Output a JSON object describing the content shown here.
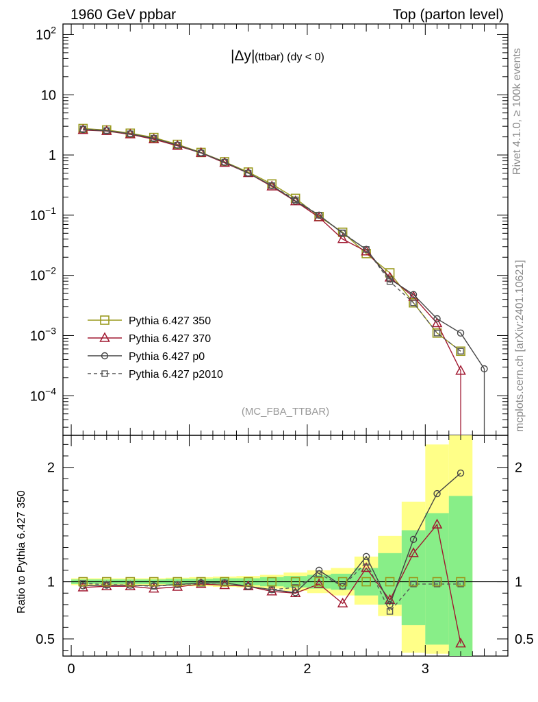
{
  "header": {
    "left": "1960 GeV ppbar",
    "right": "Top (parton level)"
  },
  "plot_title": {
    "main": "|Δy|",
    "sub": "(ttbar) (dy < 0)"
  },
  "watermark": "(MC_FBA_TTBAR)",
  "side_label_top": "Rivet 4.1.0, ≥ 100k events",
  "side_label_bottom": "mcplots.cern.ch [arXiv:2401.10621]",
  "chart_data": {
    "type": "line",
    "x": [
      0.1,
      0.3,
      0.5,
      0.7,
      0.9,
      1.1,
      1.3,
      1.5,
      1.7,
      1.9,
      2.1,
      2.3,
      2.5,
      2.7,
      2.9,
      3.1,
      3.3,
      3.5
    ],
    "xlim": [
      -0.07,
      3.7
    ],
    "x_ticks": [
      "0",
      "1",
      "2",
      "3"
    ],
    "main_panel": {
      "yscale": "log",
      "ylim": [
        2.2e-05,
        150
      ],
      "y_ticks": [
        {
          "base": "10",
          "exp": "2",
          "value": 100
        },
        {
          "base": "10",
          "exp": "",
          "value": 10
        },
        {
          "base": "1",
          "exp": "",
          "value": 1
        },
        {
          "base": "10",
          "exp": "−1",
          "value": 0.1
        },
        {
          "base": "10",
          "exp": "−2",
          "value": 0.01
        },
        {
          "base": "10",
          "exp": "−3",
          "value": 0.001
        },
        {
          "base": "10",
          "exp": "−4",
          "value": 0.0001
        }
      ],
      "series": [
        {
          "name": "Pythia 6.427 350",
          "color": "#9a9a1e",
          "marker": "square",
          "dash": false,
          "values": [
            2.75,
            2.6,
            2.3,
            1.95,
            1.5,
            1.1,
            0.77,
            0.52,
            0.33,
            0.19,
            0.095,
            0.052,
            0.023,
            0.011,
            0.0035,
            0.0011,
            0.00055,
            null
          ]
        },
        {
          "name": "Pythia 6.427 370",
          "color": "#a01830",
          "marker": "triangle",
          "dash": false,
          "values": [
            2.6,
            2.5,
            2.2,
            1.82,
            1.42,
            1.08,
            0.74,
            0.5,
            0.3,
            0.17,
            0.092,
            0.04,
            0.025,
            0.0092,
            0.0044,
            0.0016,
            0.00026,
            null
          ]
        },
        {
          "name": "Pythia 6.427 p0",
          "color": "#444444",
          "marker": "circle",
          "dash": false,
          "values": [
            2.65,
            2.52,
            2.25,
            1.88,
            1.46,
            1.09,
            0.76,
            0.5,
            0.31,
            0.172,
            0.1,
            0.05,
            0.027,
            0.0087,
            0.0048,
            0.0019,
            0.0011,
            0.00028
          ]
        },
        {
          "name": "Pythia 6.427 p2010",
          "color": "#555555",
          "marker": "square-small",
          "dash": true,
          "values": [
            2.7,
            2.55,
            2.25,
            1.9,
            1.46,
            1.08,
            0.76,
            0.5,
            0.31,
            0.18,
            0.1,
            0.051,
            0.027,
            0.0079,
            0.0035,
            0.0011,
            0.00055,
            null
          ]
        }
      ]
    },
    "ratio_panel": {
      "ylabel": "Ratio to Pythia 6.427 350",
      "ylim": [
        0.35,
        2.28
      ],
      "y_ticks": [
        "0.5",
        "1",
        "2"
      ],
      "y_tick_values": [
        0.5,
        1,
        2
      ],
      "band_edges": [
        0.0,
        0.2,
        0.4,
        0.6,
        0.8,
        1.0,
        1.2,
        1.4,
        1.6,
        1.8,
        2.0,
        2.2,
        2.4,
        2.6,
        2.8,
        3.0,
        3.2,
        3.4
      ],
      "band_yellow": [
        [
          0.97,
          1.03
        ],
        [
          0.97,
          1.03
        ],
        [
          0.97,
          1.03
        ],
        [
          0.97,
          1.03
        ],
        [
          0.965,
          1.035
        ],
        [
          0.96,
          1.04
        ],
        [
          0.955,
          1.045
        ],
        [
          0.95,
          1.05
        ],
        [
          0.94,
          1.06
        ],
        [
          0.92,
          1.08
        ],
        [
          0.9,
          1.1
        ],
        [
          0.88,
          1.12
        ],
        [
          0.8,
          1.22
        ],
        [
          0.7,
          1.4
        ],
        [
          0.38,
          1.7
        ],
        [
          0.37,
          2.2
        ],
        [
          0.35,
          2.3
        ]
      ],
      "band_green": [
        [
          0.98,
          1.02
        ],
        [
          0.98,
          1.02
        ],
        [
          0.98,
          1.02
        ],
        [
          0.98,
          1.02
        ],
        [
          0.975,
          1.025
        ],
        [
          0.975,
          1.025
        ],
        [
          0.97,
          1.03
        ],
        [
          0.97,
          1.03
        ],
        [
          0.96,
          1.04
        ],
        [
          0.95,
          1.05
        ],
        [
          0.94,
          1.06
        ],
        [
          0.93,
          1.07
        ],
        [
          0.88,
          1.12
        ],
        [
          0.8,
          1.25
        ],
        [
          0.62,
          1.45
        ],
        [
          0.45,
          1.6
        ],
        [
          0.35,
          1.75
        ]
      ],
      "series": [
        {
          "name": "Pythia 6.427 370",
          "color": "#a01830",
          "marker": "triangle",
          "dash": false,
          "values": [
            0.95,
            0.96,
            0.96,
            0.94,
            0.955,
            0.98,
            0.97,
            0.96,
            0.915,
            0.9,
            0.98,
            0.81,
            1.12,
            0.84,
            1.25,
            1.5,
            0.46
          ]
        },
        {
          "name": "Pythia 6.427 p0",
          "color": "#444444",
          "marker": "circle",
          "dash": false,
          "values": [
            0.965,
            0.97,
            0.97,
            0.965,
            0.975,
            0.99,
            0.99,
            0.96,
            0.93,
            0.905,
            1.1,
            0.96,
            1.22,
            0.8,
            1.37,
            1.77,
            1.95
          ]
        },
        {
          "name": "Pythia 6.427 p2010",
          "color": "#555555",
          "marker": "square-small",
          "dash": true,
          "values": [
            0.985,
            0.975,
            0.97,
            0.96,
            0.975,
            0.985,
            0.99,
            0.96,
            0.93,
            0.95,
            1.07,
            0.96,
            1.17,
            0.74,
            0.98,
            0.98,
            0.98
          ]
        }
      ]
    }
  }
}
